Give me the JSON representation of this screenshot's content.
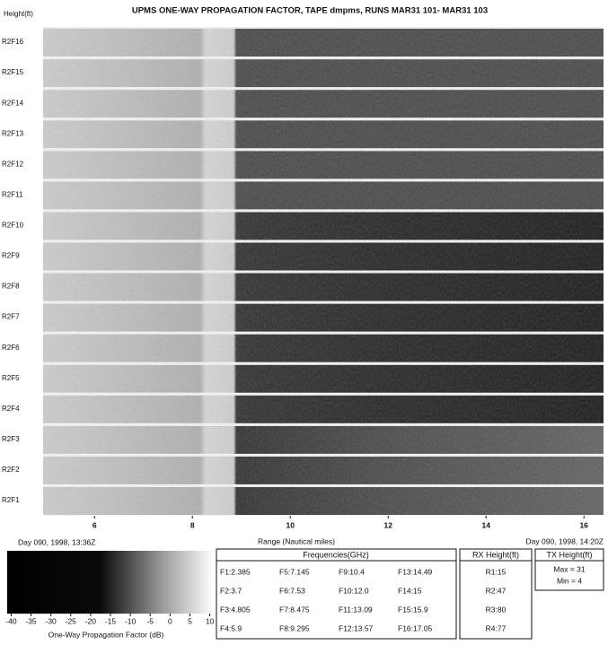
{
  "chart_data": {
    "type": "heatmap",
    "title": "UPMS ONE-WAY PROPAGATION FACTOR, TAPE dmpms, RUNS MAR31 101- MAR31 103",
    "ylabel": "Height(ft)",
    "categories": [
      "R2F16",
      "R2F15",
      "R2F14",
      "R2F13",
      "R2F12",
      "R2F11",
      "R2F10",
      "R2F9",
      "R2F8",
      "R2F7",
      "R2F6",
      "R2F5",
      "R2F4",
      "R2F3",
      "R2F2",
      "R2F1"
    ],
    "xlabel": "Range (Nautical miles)",
    "xlim": [
      4.95,
      16.4
    ],
    "xticks": [
      6,
      8,
      10,
      12,
      14,
      16
    ],
    "start_time": "Day 090, 1998, 13:36Z",
    "end_time": "Day 090, 1998, 14:20Z",
    "colorbar": {
      "label": "One-Way Propagation Factor (dB)",
      "lim": [
        -41,
        11
      ],
      "ticks": [
        -40,
        -35,
        -30,
        -25,
        -20,
        -15,
        -10,
        -5,
        0,
        5,
        10
      ]
    }
  },
  "frequencies": {
    "title": "Frequencies(GHz)",
    "items": [
      "F1:2.385",
      "F2:3.7",
      "F3:4.805",
      "F4:5.9",
      "F5:7.145",
      "F6:7.53",
      "F7:8.475",
      "F8:9.295",
      "F9:10.4",
      "F10:12.0",
      "F11:13.09",
      "F12:13.57",
      "F13:14.49",
      "F14:15",
      "F15:15.9",
      "F16:17.05"
    ]
  },
  "rx": {
    "title": "RX Height(ft)",
    "items": [
      "R1:15",
      "R2:47",
      "R3:80",
      "R4:77"
    ]
  },
  "tx": {
    "title": "TX Height(ft)",
    "items": [
      "Max = 31",
      "Min = 4"
    ]
  }
}
